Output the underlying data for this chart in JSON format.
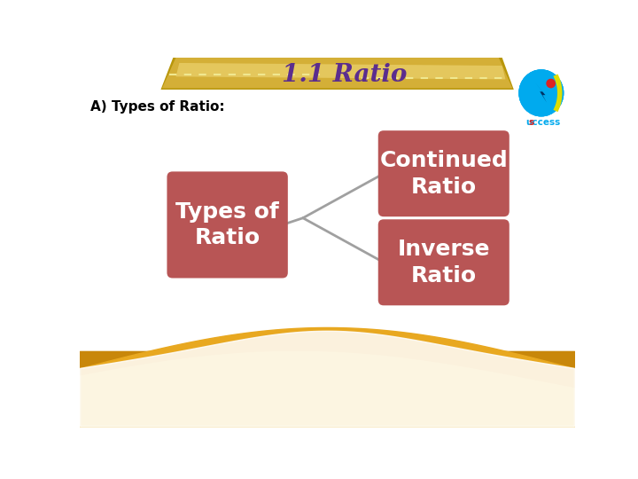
{
  "title": "1.1 Ratio",
  "title_color": "#5B2D8E",
  "subtitle": "A) Types of Ratio:",
  "subtitle_color": "#000000",
  "box_color": "#B85555",
  "box_text_color": "#FFFFFF",
  "main_box_text": "Types of\nRatio",
  "branch_box1_text": "Continued\nRatio",
  "branch_box2_text": "Inverse\nRatio",
  "bg_color": "#FFFFFF",
  "arrow_color": "#A0A0A0",
  "wave_color1": "#C8870A",
  "wave_color2": "#E8A820",
  "wave_color3": "#F0C040",
  "banner_color1": "#B8960A",
  "banner_color2": "#D4AF37",
  "banner_color3": "#F0D878",
  "dashed_color": "#F0E890",
  "logo_blue": "#00AAEE",
  "logo_red": "#DD2222",
  "logo_yellow": "#DDDD00"
}
